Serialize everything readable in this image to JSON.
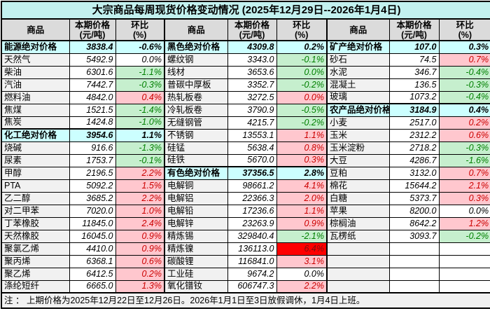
{
  "title": "大宗商品每周现货价格变动情况 (2025年12月29日--2026年1月4日)",
  "headers": {
    "name": "商品",
    "price_line1": "本期价格",
    "price_line2": "(元/吨)",
    "change_line1": "环比",
    "change_line2": "(%)"
  },
  "note": "注 ： 上期价格为2025年12月22日至12月26日。2026年1月1日至3日放假调休，1月4日上班。",
  "colors": {
    "title_bg": "#c3f1ef",
    "cat_bg": "#ccffff",
    "header_bg": "#dbdbdb",
    "name_bg": "#f1f1f1",
    "up_bg": "#ffc7ce",
    "up_text": "#cc0000",
    "down_bg": "#c6efce",
    "down_text": "#008000",
    "alert_bg": "#ff0000",
    "alert_text": "#7a1010",
    "border": "#000000",
    "text": "#000000"
  },
  "groups": [
    {
      "rows": [
        {
          "name": "能源绝对价格",
          "price": "3838.4",
          "change": "-0.6%",
          "style": "cat"
        },
        {
          "name": "天然气",
          "price": "5492.9",
          "change": "0.0%",
          "style": "flat"
        },
        {
          "name": "柴油",
          "price": "6301.6",
          "change": "-1.1%",
          "style": "down"
        },
        {
          "name": "汽油",
          "price": "7442.7",
          "change": "-0.3%",
          "style": "down"
        },
        {
          "name": "燃料油",
          "price": "4842.0",
          "change": "0.4%",
          "style": "up"
        },
        {
          "name": "焦煤",
          "price": "1521.5",
          "change": "-1.4%",
          "style": "down"
        },
        {
          "name": "焦炭",
          "price": "1424.8",
          "change": "-1.0%",
          "style": "down"
        },
        {
          "name": "化工绝对价格",
          "price": "3954.6",
          "change": "1.1%",
          "style": "cat"
        },
        {
          "name": "烧碱",
          "price": "916.6",
          "change": "-1.3%",
          "style": "down"
        },
        {
          "name": "尿素",
          "price": "1753.7",
          "change": "-0.1%",
          "style": "down"
        },
        {
          "name": "甲醇",
          "price": "2196.5",
          "change": "2.2%",
          "style": "up"
        },
        {
          "name": "PTA",
          "price": "5092.2",
          "change": "1.5%",
          "style": "up"
        },
        {
          "name": "乙二醇",
          "price": "3685.2",
          "change": "2.2%",
          "style": "up"
        },
        {
          "name": "对二甲苯",
          "price": "7020.0",
          "change": "1.0%",
          "style": "up"
        },
        {
          "name": "丁苯橡胶",
          "price": "11845.0",
          "change": "2.4%",
          "style": "up"
        },
        {
          "name": "天然橡胶",
          "price": "16045.0",
          "change": "0.9%",
          "style": "up"
        },
        {
          "name": "聚氯乙烯",
          "price": "4410.0",
          "change": "0.9%",
          "style": "up"
        },
        {
          "name": "聚丙烯",
          "price": "6368.1",
          "change": "0.6%",
          "style": "up"
        },
        {
          "name": "聚乙烯",
          "price": "6412.5",
          "change": "0.2%",
          "style": "up"
        },
        {
          "name": "涤纶短纤",
          "price": "6665.0",
          "change": "1.3%",
          "style": "up"
        }
      ]
    },
    {
      "rows": [
        {
          "name": "黑色绝对价格",
          "price": "4309.8",
          "change": "0.2%",
          "style": "cat"
        },
        {
          "name": "螺纹钢",
          "price": "3343.0",
          "change": "-0.1%",
          "style": "down"
        },
        {
          "name": "线材",
          "price": "3653.6",
          "change": "0.0%",
          "style": "down"
        },
        {
          "name": "普碳中厚板",
          "price": "3352.7",
          "change": "-0.2%",
          "style": "down"
        },
        {
          "name": "热轧板卷",
          "price": "3272.5",
          "change": "0.0%",
          "style": "up"
        },
        {
          "name": "冷轧板卷",
          "price": "3790.9",
          "change": "-0.5%",
          "style": "down"
        },
        {
          "name": "无缝钢管",
          "price": "4215.7",
          "change": "-0.2%",
          "style": "down"
        },
        {
          "name": "不锈钢",
          "price": "13553.1",
          "change": "1.1%",
          "style": "up"
        },
        {
          "name": "硅锰",
          "price": "5638.4",
          "change": "0.8%",
          "style": "up"
        },
        {
          "name": "硅铁",
          "price": "5670.0",
          "change": "0.3%",
          "style": "up"
        },
        {
          "name": "有色绝对价格",
          "price": "37356.5",
          "change": "2.8%",
          "style": "cat"
        },
        {
          "name": "电解铜",
          "price": "98661.2",
          "change": "4.1%",
          "style": "up"
        },
        {
          "name": "电解铝",
          "price": "22366.3",
          "change": "2.0%",
          "style": "up"
        },
        {
          "name": "电解铅",
          "price": "17236.6",
          "change": "1.1%",
          "style": "up"
        },
        {
          "name": "电解锌",
          "price": "23263.9",
          "change": "0.9%",
          "style": "up"
        },
        {
          "name": "精炼锡",
          "price": "329840.4",
          "change": "-2.1%",
          "style": "down"
        },
        {
          "name": "精炼镍",
          "price": "136113.0",
          "change": "6.4%",
          "style": "alert"
        },
        {
          "name": "碳酸锂",
          "price": "116841.0",
          "change": "3.1%",
          "style": "up"
        },
        {
          "name": "工业硅",
          "price": "9674.2",
          "change": "0.0%",
          "style": "flat"
        },
        {
          "name": "氧化镨钕",
          "price": "606747.3",
          "change": "2.2%",
          "style": "up"
        }
      ]
    },
    {
      "rows": [
        {
          "name": "矿产绝对价格",
          "price": "107.0",
          "change": "0.3%",
          "style": "cat"
        },
        {
          "name": "砂石",
          "price": "74.5",
          "change": "0.7%",
          "style": "up"
        },
        {
          "name": "水泥",
          "price": "346.7",
          "change": "-0.4%",
          "style": "down"
        },
        {
          "name": "混凝土",
          "price": "136.5",
          "change": "-0.3%",
          "style": "down"
        },
        {
          "name": "玻璃",
          "price": "1073.2",
          "change": "-0.4%",
          "style": "down"
        },
        {
          "name": "农产品绝对价格",
          "price": "3184.9",
          "change": "0.4%",
          "style": "cat"
        },
        {
          "name": "小麦",
          "price": "2517.0",
          "change": "0.2%",
          "style": "up"
        },
        {
          "name": "玉米",
          "price": "2312.2",
          "change": "0.6%",
          "style": "up"
        },
        {
          "name": "玉米淀粉",
          "price": "2718.2",
          "change": "-0.3%",
          "style": "down"
        },
        {
          "name": "大豆",
          "price": "4286.7",
          "change": "-1.6%",
          "style": "down"
        },
        {
          "name": "豆粕",
          "price": "3132.0",
          "change": "0.7%",
          "style": "up"
        },
        {
          "name": "棉花",
          "price": "15644.2",
          "change": "2.1%",
          "style": "up"
        },
        {
          "name": "白糖",
          "price": "5373.7",
          "change": "0.3%",
          "style": "up"
        },
        {
          "name": "苹果",
          "price": "8200.0",
          "change": "0.0%",
          "style": "flat"
        },
        {
          "name": "棕榈油",
          "price": "8642.2",
          "change": "1.2%",
          "style": "up"
        },
        {
          "name": "瓦楞纸",
          "price": "3093.7",
          "change": "-0.2%",
          "style": "down"
        },
        {
          "name": "",
          "price": "",
          "change": "",
          "style": "empty"
        },
        {
          "name": "",
          "price": "",
          "change": "",
          "style": "empty"
        },
        {
          "name": "",
          "price": "",
          "change": "",
          "style": "empty"
        },
        {
          "name": "",
          "price": "",
          "change": "",
          "style": "empty"
        }
      ]
    }
  ]
}
